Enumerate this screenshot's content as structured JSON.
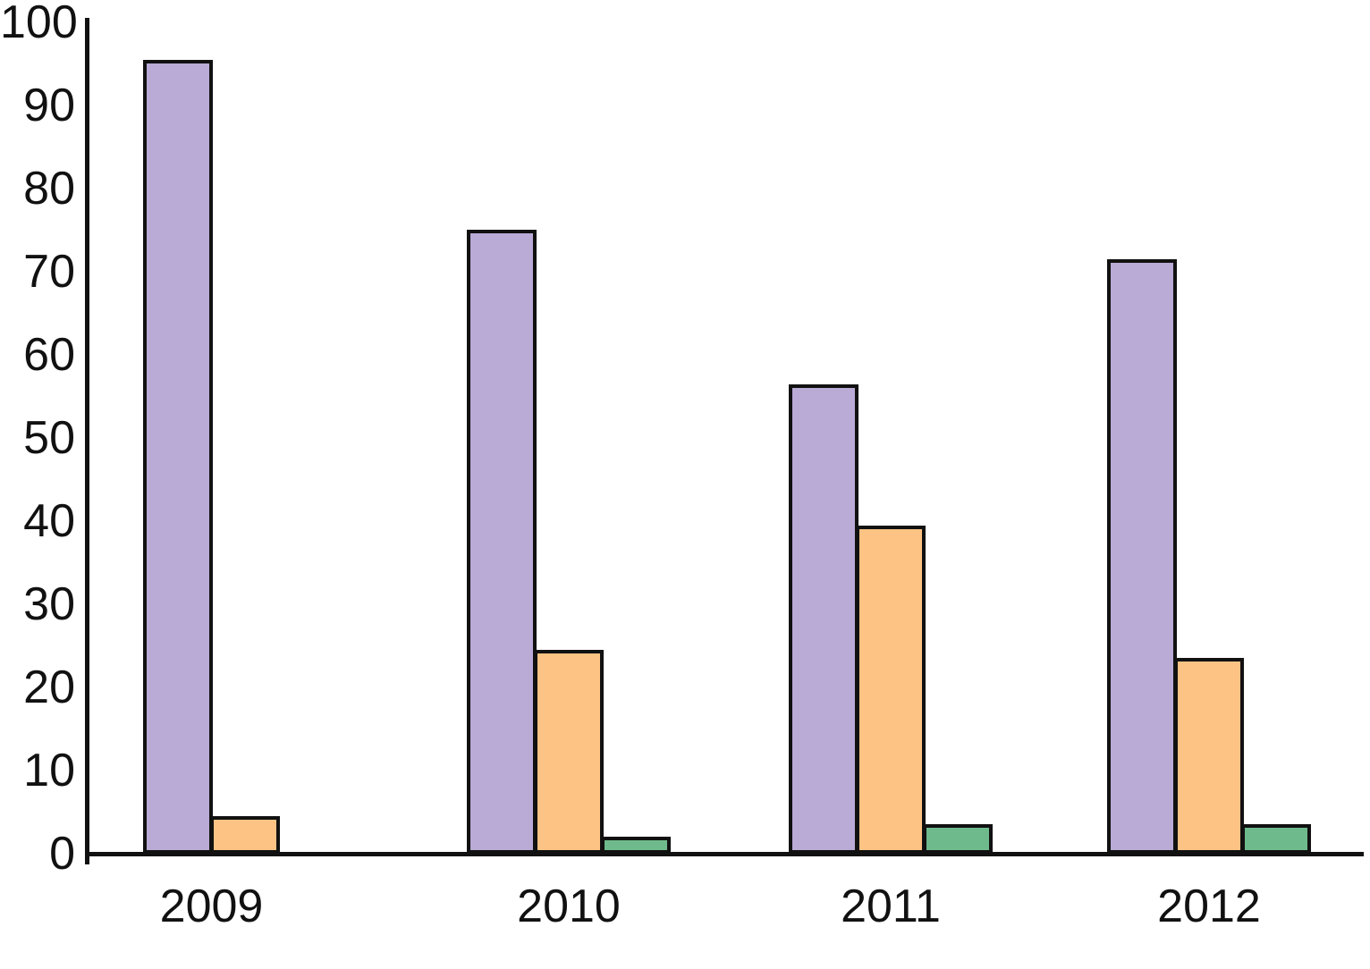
{
  "chart_data": {
    "type": "bar",
    "title": "",
    "xlabel": "",
    "ylabel": "",
    "categories": [
      "2009",
      "2010",
      "2011",
      "2012"
    ],
    "series": [
      {
        "name": "purple",
        "color": "#b9aad6",
        "values": [
          95.5,
          75,
          56.5,
          71.5
        ]
      },
      {
        "name": "orange",
        "color": "#fcc384",
        "values": [
          4.5,
          24.5,
          39.5,
          23.5
        ]
      },
      {
        "name": "green",
        "color": "#6fba8c",
        "values": [
          null,
          2,
          3.5,
          3.5
        ]
      }
    ],
    "ylim": [
      0,
      100
    ],
    "yticks": [
      0,
      10,
      20,
      30,
      40,
      50,
      60,
      70,
      80,
      90,
      100
    ],
    "grid": false,
    "legend": "none",
    "bar_outline_color": "#111111",
    "axis_color": "#111111",
    "text_color": "#111111",
    "background_color": "#ffffff"
  }
}
